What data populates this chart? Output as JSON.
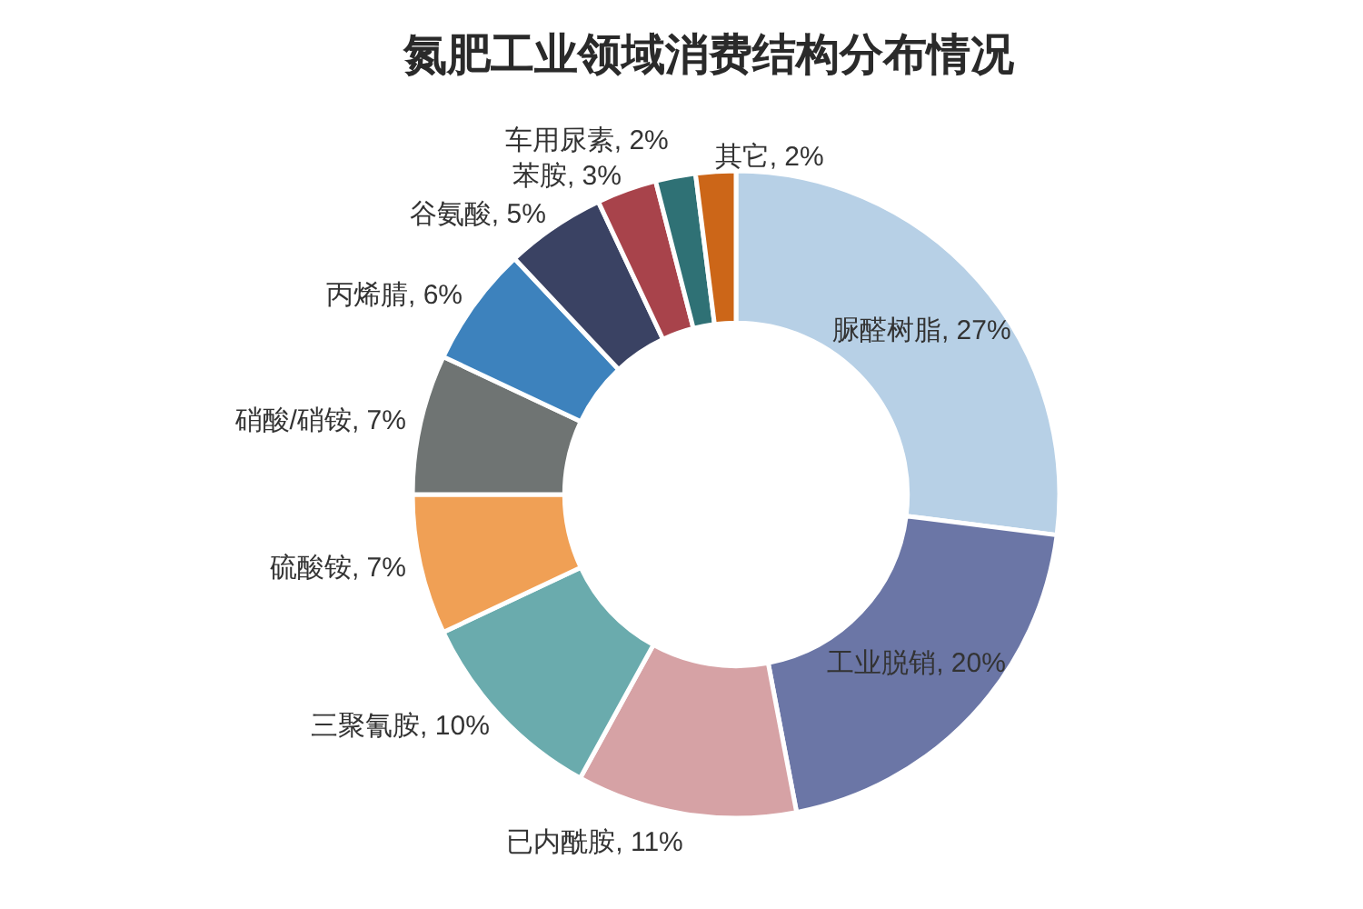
{
  "chart_data": {
    "type": "donut",
    "title": "氮肥工业领域消费结构分布情况",
    "categories": [
      "脲醛树脂",
      "工业脱销",
      "已内酰胺",
      "三聚氰胺",
      "硫酸铵",
      "硝酸/硝铵",
      "丙烯腈",
      "谷氨酸",
      "苯胺",
      "车用尿素",
      "其它"
    ],
    "values": [
      27,
      20,
      11,
      10,
      7,
      7,
      6,
      5,
      3,
      2,
      2
    ],
    "colors": [
      "#b7d0e6",
      "#6b76a6",
      "#d6a2a5",
      "#6aabad",
      "#f0a055",
      "#6f7473",
      "#3d82bd",
      "#3a4263",
      "#a8434b",
      "#2f7175",
      "#cc6618"
    ],
    "value_labels": [
      "27%",
      "20%",
      "11%",
      "10%",
      "7%",
      "7%",
      "6%",
      "5%",
      "3%",
      "2%",
      "2%"
    ]
  }
}
